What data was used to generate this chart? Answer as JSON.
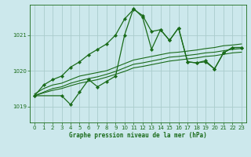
{
  "xlabel": "Graphe pression niveau de la mer (hPa)",
  "background_color": "#cce8ec",
  "grid_color": "#aacccc",
  "line_color": "#1a6b1a",
  "ylim": [
    1018.55,
    1021.85
  ],
  "xlim": [
    -0.5,
    23.5
  ],
  "yticks": [
    1019,
    1020,
    1021
  ],
  "xticks": [
    0,
    1,
    2,
    3,
    4,
    5,
    6,
    7,
    8,
    9,
    10,
    11,
    12,
    13,
    14,
    15,
    16,
    17,
    18,
    19,
    20,
    21,
    22,
    23
  ],
  "curves": [
    {
      "x": [
        0,
        1,
        2,
        3,
        4,
        5,
        6,
        7,
        8,
        9,
        10,
        11,
        12,
        13,
        14,
        15,
        16,
        17,
        18,
        19,
        20,
        21,
        22,
        23
      ],
      "y": [
        1019.35,
        1019.5,
        1019.6,
        1019.65,
        1019.75,
        1019.85,
        1019.9,
        1019.95,
        1020.0,
        1020.1,
        1020.2,
        1020.3,
        1020.35,
        1020.4,
        1020.45,
        1020.5,
        1020.52,
        1020.55,
        1020.58,
        1020.62,
        1020.65,
        1020.7,
        1020.72,
        1020.75
      ],
      "marker": false,
      "lw": 0.8
    },
    {
      "x": [
        0,
        1,
        2,
        3,
        4,
        5,
        6,
        7,
        8,
        9,
        10,
        11,
        12,
        13,
        14,
        15,
        16,
        17,
        18,
        19,
        20,
        21,
        22,
        23
      ],
      "y": [
        1019.3,
        1019.4,
        1019.5,
        1019.55,
        1019.65,
        1019.72,
        1019.78,
        1019.83,
        1019.9,
        1019.98,
        1020.08,
        1020.18,
        1020.22,
        1020.27,
        1020.32,
        1020.38,
        1020.4,
        1020.43,
        1020.46,
        1020.5,
        1020.52,
        1020.56,
        1020.6,
        1020.62
      ],
      "marker": false,
      "lw": 0.8
    },
    {
      "x": [
        0,
        1,
        2,
        3,
        4,
        5,
        6,
        7,
        8,
        9,
        10,
        11,
        12,
        13,
        14,
        15,
        16,
        17,
        18,
        19,
        20,
        21,
        22,
        23
      ],
      "y": [
        1019.3,
        1019.38,
        1019.45,
        1019.5,
        1019.58,
        1019.65,
        1019.7,
        1019.75,
        1019.82,
        1019.9,
        1019.98,
        1020.08,
        1020.12,
        1020.17,
        1020.22,
        1020.27,
        1020.3,
        1020.33,
        1020.36,
        1020.4,
        1020.42,
        1020.46,
        1020.5,
        1020.52
      ],
      "marker": false,
      "lw": 0.8
    },
    {
      "x": [
        0,
        1,
        2,
        3,
        4,
        5,
        6,
        7,
        8,
        9,
        10,
        11,
        12,
        13,
        14,
        15,
        16,
        17,
        18,
        19,
        20,
        21,
        22,
        23
      ],
      "y": [
        1019.3,
        1019.6,
        1019.75,
        1019.85,
        1020.1,
        1020.25,
        1020.45,
        1020.6,
        1020.75,
        1021.0,
        1021.45,
        1021.72,
        1021.55,
        1021.1,
        1021.15,
        1020.85,
        1021.2,
        1020.25,
        1020.22,
        1020.25,
        1020.05,
        1020.5,
        1020.65,
        1020.65
      ],
      "marker": true,
      "lw": 0.9
    },
    {
      "x": [
        0,
        3,
        4,
        5,
        6,
        7,
        8,
        9,
        10,
        11,
        12,
        13,
        14,
        15,
        16,
        17,
        18,
        19,
        20,
        21,
        22,
        23
      ],
      "y": [
        1019.3,
        1019.3,
        1019.05,
        1019.4,
        1019.75,
        1019.55,
        1019.7,
        1019.85,
        1021.0,
        1021.75,
        1021.5,
        1020.6,
        1021.15,
        1020.85,
        1021.2,
        1020.25,
        1020.22,
        1020.28,
        1020.05,
        1020.5,
        1020.65,
        1020.65
      ],
      "marker": true,
      "lw": 0.9
    }
  ]
}
